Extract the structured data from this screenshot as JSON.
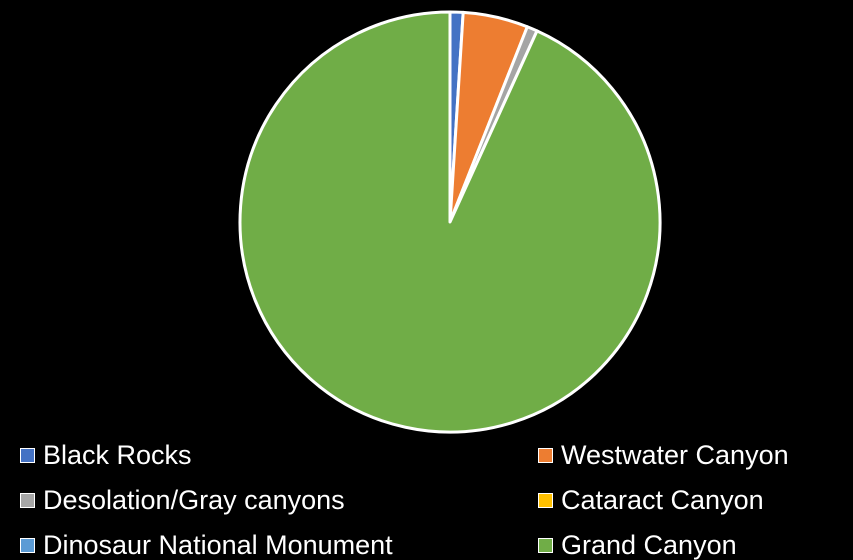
{
  "chart_data": {
    "type": "pie",
    "title": "",
    "categories": [
      "Black Rocks",
      "Westwater Canyon",
      "Desolation/Gray canyons",
      "Cataract Canyon",
      "Dinosaur National Monument",
      "Grand Canyon"
    ],
    "values": [
      1.0,
      5.0,
      0.8,
      0.0,
      0.0,
      93.2
    ],
    "colors": [
      "#4472C4",
      "#ED7D31",
      "#A5A5A5",
      "#FFC000",
      "#5B9BD5",
      "#70AD47"
    ],
    "legend_position": "bottom",
    "background": "#000000",
    "slice_border": "#ffffff"
  }
}
